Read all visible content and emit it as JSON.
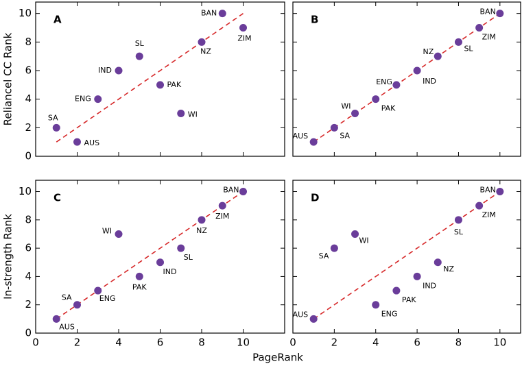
{
  "xlabel": "PageRank",
  "chart_data": [
    {
      "type": "scatter",
      "title": "A",
      "ylabel": "Reliancel CC Rank",
      "labels": [
        "SA",
        "AUS",
        "ENG",
        "IND",
        "SL",
        "PAK",
        "WI",
        "NZ",
        "BAN",
        "ZIM"
      ],
      "x": [
        1,
        2,
        3,
        4,
        5,
        6,
        7,
        8,
        9,
        10
      ],
      "y": [
        2,
        1,
        4,
        6,
        7,
        5,
        3,
        8,
        10,
        9
      ],
      "color": "#6a3d9a",
      "reference_line": {
        "x": [
          1,
          10
        ],
        "y": [
          1,
          10
        ],
        "color": "#d62728",
        "style": "dashed"
      },
      "xlim": [
        0,
        12
      ],
      "ylim": [
        0,
        10.8
      ],
      "xticks": [
        0,
        2,
        4,
        6,
        8,
        10
      ],
      "yticks": [
        0,
        2,
        4,
        6,
        8,
        10
      ]
    },
    {
      "type": "scatter",
      "title": "B",
      "labels": [
        "AUS",
        "SA",
        "WI",
        "PAK",
        "ENG",
        "IND",
        "NZ",
        "SL",
        "ZIM",
        "BAN"
      ],
      "x": [
        1,
        2,
        3,
        4,
        5,
        6,
        7,
        8,
        9,
        10
      ],
      "y": [
        1,
        2,
        3,
        4,
        5,
        6,
        7,
        8,
        9,
        10
      ],
      "color": "#6a3d9a",
      "reference_line": {
        "x": [
          1,
          10
        ],
        "y": [
          1,
          10
        ],
        "color": "#d62728",
        "style": "dashed"
      },
      "xlim": [
        0,
        11
      ],
      "ylim": [
        0,
        10.8
      ],
      "xticks": [
        0,
        2,
        4,
        6,
        8,
        10
      ],
      "yticks": [
        0,
        2,
        4,
        6,
        8,
        10
      ]
    },
    {
      "type": "scatter",
      "title": "C",
      "ylabel": "In-strength Rank",
      "labels": [
        "AUS",
        "SA",
        "ENG",
        "WI",
        "PAK",
        "IND",
        "SL",
        "NZ",
        "ZIM",
        "BAN"
      ],
      "x": [
        1,
        2,
        3,
        4,
        5,
        6,
        7,
        8,
        9,
        10
      ],
      "y": [
        1,
        2,
        3,
        7,
        4,
        5,
        6,
        8,
        9,
        10
      ],
      "color": "#6a3d9a",
      "reference_line": {
        "x": [
          1,
          10
        ],
        "y": [
          1,
          10
        ],
        "color": "#d62728",
        "style": "dashed"
      },
      "xlim": [
        0,
        12
      ],
      "ylim": [
        0,
        10.8
      ],
      "xticks": [
        0,
        2,
        4,
        6,
        8,
        10
      ],
      "yticks": [
        0,
        2,
        4,
        6,
        8,
        10
      ]
    },
    {
      "type": "scatter",
      "title": "D",
      "labels": [
        "AUS",
        "SA",
        "WI",
        "ENG",
        "PAK",
        "IND",
        "NZ",
        "SL",
        "ZIM",
        "BAN"
      ],
      "x": [
        1,
        2,
        3,
        4,
        5,
        6,
        7,
        8,
        9,
        10
      ],
      "y": [
        1,
        6,
        7,
        2,
        3,
        4,
        5,
        8,
        9,
        10
      ],
      "color": "#6a3d9a",
      "reference_line": {
        "x": [
          1,
          10
        ],
        "y": [
          1,
          10
        ],
        "color": "#d62728",
        "style": "dashed"
      },
      "xlim": [
        0,
        11
      ],
      "ylim": [
        0,
        10.8
      ],
      "xticks": [
        0,
        2,
        4,
        6,
        8,
        10
      ],
      "yticks": [
        0,
        2,
        4,
        6,
        8,
        10
      ]
    }
  ]
}
